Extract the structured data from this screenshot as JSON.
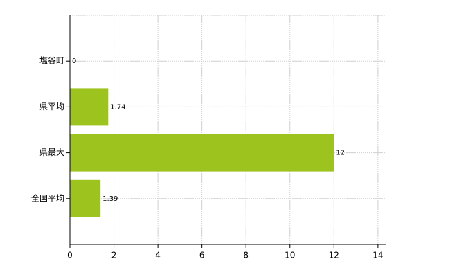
{
  "chart_data": {
    "type": "barh",
    "categories": [
      "塩谷町",
      "県平均",
      "県最大",
      "全国平均"
    ],
    "values": [
      0,
      1.74,
      12,
      1.39
    ],
    "color": "#9dc31f",
    "xlim": [
      0,
      14.35
    ],
    "xticks": [
      0,
      2,
      4,
      6,
      8,
      10,
      12,
      14
    ],
    "grid": true
  }
}
